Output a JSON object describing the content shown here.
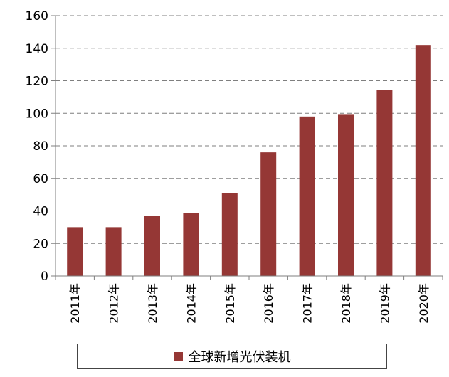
{
  "chart_data": {
    "type": "bar",
    "categories": [
      "2011年",
      "2012年",
      "2013年",
      "2014年",
      "2015年",
      "2016年",
      "2017年",
      "2018年",
      "2019年",
      "2020年"
    ],
    "series": [
      {
        "name": "全球新增光伏装机",
        "values": [
          30,
          30,
          37,
          38.5,
          51,
          76,
          98,
          99.5,
          114.5,
          142
        ]
      }
    ],
    "ylim": [
      0,
      160
    ],
    "yticks": [
      0,
      20,
      40,
      60,
      80,
      100,
      120,
      140,
      160
    ],
    "grid": true,
    "legend_position": "bottom",
    "bar_color": "#953735"
  }
}
